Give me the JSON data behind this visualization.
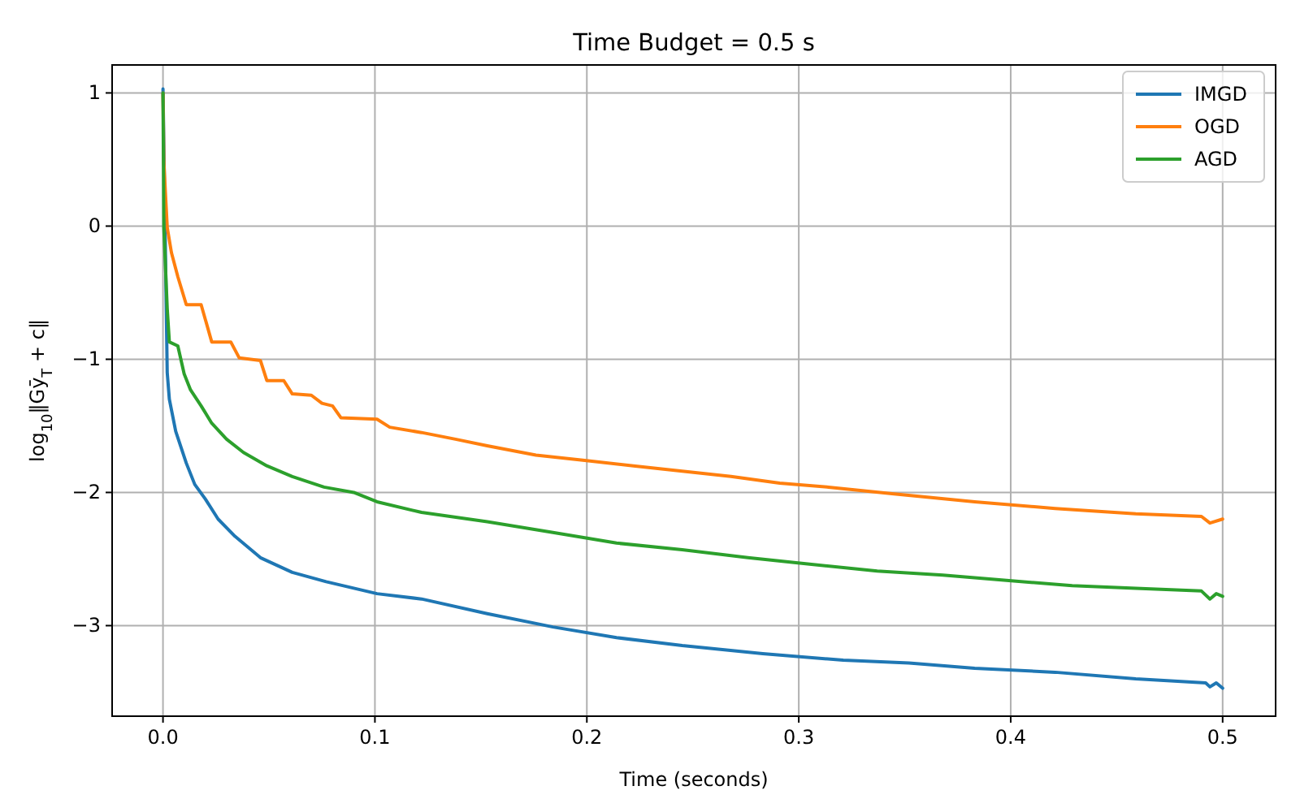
{
  "chart_data": {
    "type": "line",
    "title": "Time Budget = 0.5 s",
    "xlabel": "Time (seconds)",
    "ylabel": "log$_{10}$‖Gȳ$_{T}$ + c‖",
    "xlim": [
      -0.024,
      0.525
    ],
    "ylim": [
      -3.68,
      1.21
    ],
    "xticks": [
      {
        "value": 0,
        "label": "0.0"
      },
      0.1,
      0.2,
      0.3,
      0.4,
      0.5
    ],
    "yticks": [
      {
        "value": -3,
        "label": "−3"
      },
      {
        "value": -2,
        "label": "−2"
      },
      {
        "value": -1,
        "label": "−1"
      },
      0,
      1
    ],
    "grid": true,
    "legend": "top right",
    "line_style": "solid",
    "marker": "none",
    "series": [
      {
        "name": "IMGD",
        "color": "#1f77b4",
        "x": [
          0,
          0.002,
          0.003,
          0.006,
          0.011,
          0.015,
          0.02,
          0.026,
          0.034,
          0.046,
          0.061,
          0.077,
          0.101,
          0.122,
          0.153,
          0.184,
          0.214,
          0.245,
          0.283,
          0.321,
          0.352,
          0.383,
          0.421,
          0.459,
          0.492,
          0.494,
          0.497,
          0.5
        ],
        "values": [
          1.03,
          -1.1,
          -1.3,
          -1.54,
          -1.78,
          -1.94,
          -2.05,
          -2.2,
          -2.33,
          -2.49,
          -2.6,
          -2.67,
          -2.76,
          -2.8,
          -2.91,
          -3.01,
          -3.09,
          -3.15,
          -3.21,
          -3.26,
          -3.28,
          -3.32,
          -3.35,
          -3.4,
          -3.43,
          -3.46,
          -3.43,
          -3.47
        ]
      },
      {
        "name": "OGD",
        "color": "#ff7f0e",
        "x": [
          0,
          0.0004,
          0.002,
          0.004,
          0.007,
          0.011,
          0.018,
          0.023,
          0.032,
          0.036,
          0.046,
          0.049,
          0.057,
          0.061,
          0.07,
          0.075,
          0.08,
          0.084,
          0.101,
          0.107,
          0.122,
          0.138,
          0.153,
          0.176,
          0.199,
          0.222,
          0.245,
          0.268,
          0.291,
          0.314,
          0.344,
          0.383,
          0.421,
          0.459,
          0.49,
          0.494,
          0.5
        ],
        "values": [
          1.0,
          0.48,
          -0.01,
          -0.2,
          -0.38,
          -0.59,
          -0.59,
          -0.87,
          -0.87,
          -0.99,
          -1.01,
          -1.16,
          -1.16,
          -1.26,
          -1.27,
          -1.33,
          -1.35,
          -1.44,
          -1.45,
          -1.51,
          -1.55,
          -1.6,
          -1.65,
          -1.72,
          -1.76,
          -1.8,
          -1.84,
          -1.88,
          -1.93,
          -1.96,
          -2.01,
          -2.07,
          -2.12,
          -2.16,
          -2.18,
          -2.23,
          -2.2
        ]
      },
      {
        "name": "AGD",
        "color": "#2ca02c",
        "x": [
          0,
          0.0004,
          0.002,
          0.003,
          0.007,
          0.01,
          0.013,
          0.018,
          0.023,
          0.03,
          0.038,
          0.049,
          0.061,
          0.076,
          0.09,
          0.101,
          0.122,
          0.153,
          0.184,
          0.214,
          0.245,
          0.276,
          0.306,
          0.337,
          0.368,
          0.398,
          0.429,
          0.459,
          0.49,
          0.494,
          0.497,
          0.5
        ],
        "values": [
          1.0,
          -0.01,
          -0.62,
          -0.87,
          -0.9,
          -1.11,
          -1.23,
          -1.35,
          -1.48,
          -1.6,
          -1.7,
          -1.8,
          -1.88,
          -1.96,
          -2.0,
          -2.07,
          -2.15,
          -2.22,
          -2.3,
          -2.38,
          -2.43,
          -2.49,
          -2.54,
          -2.59,
          -2.62,
          -2.66,
          -2.7,
          -2.72,
          -2.74,
          -2.8,
          -2.76,
          -2.78
        ]
      }
    ]
  }
}
